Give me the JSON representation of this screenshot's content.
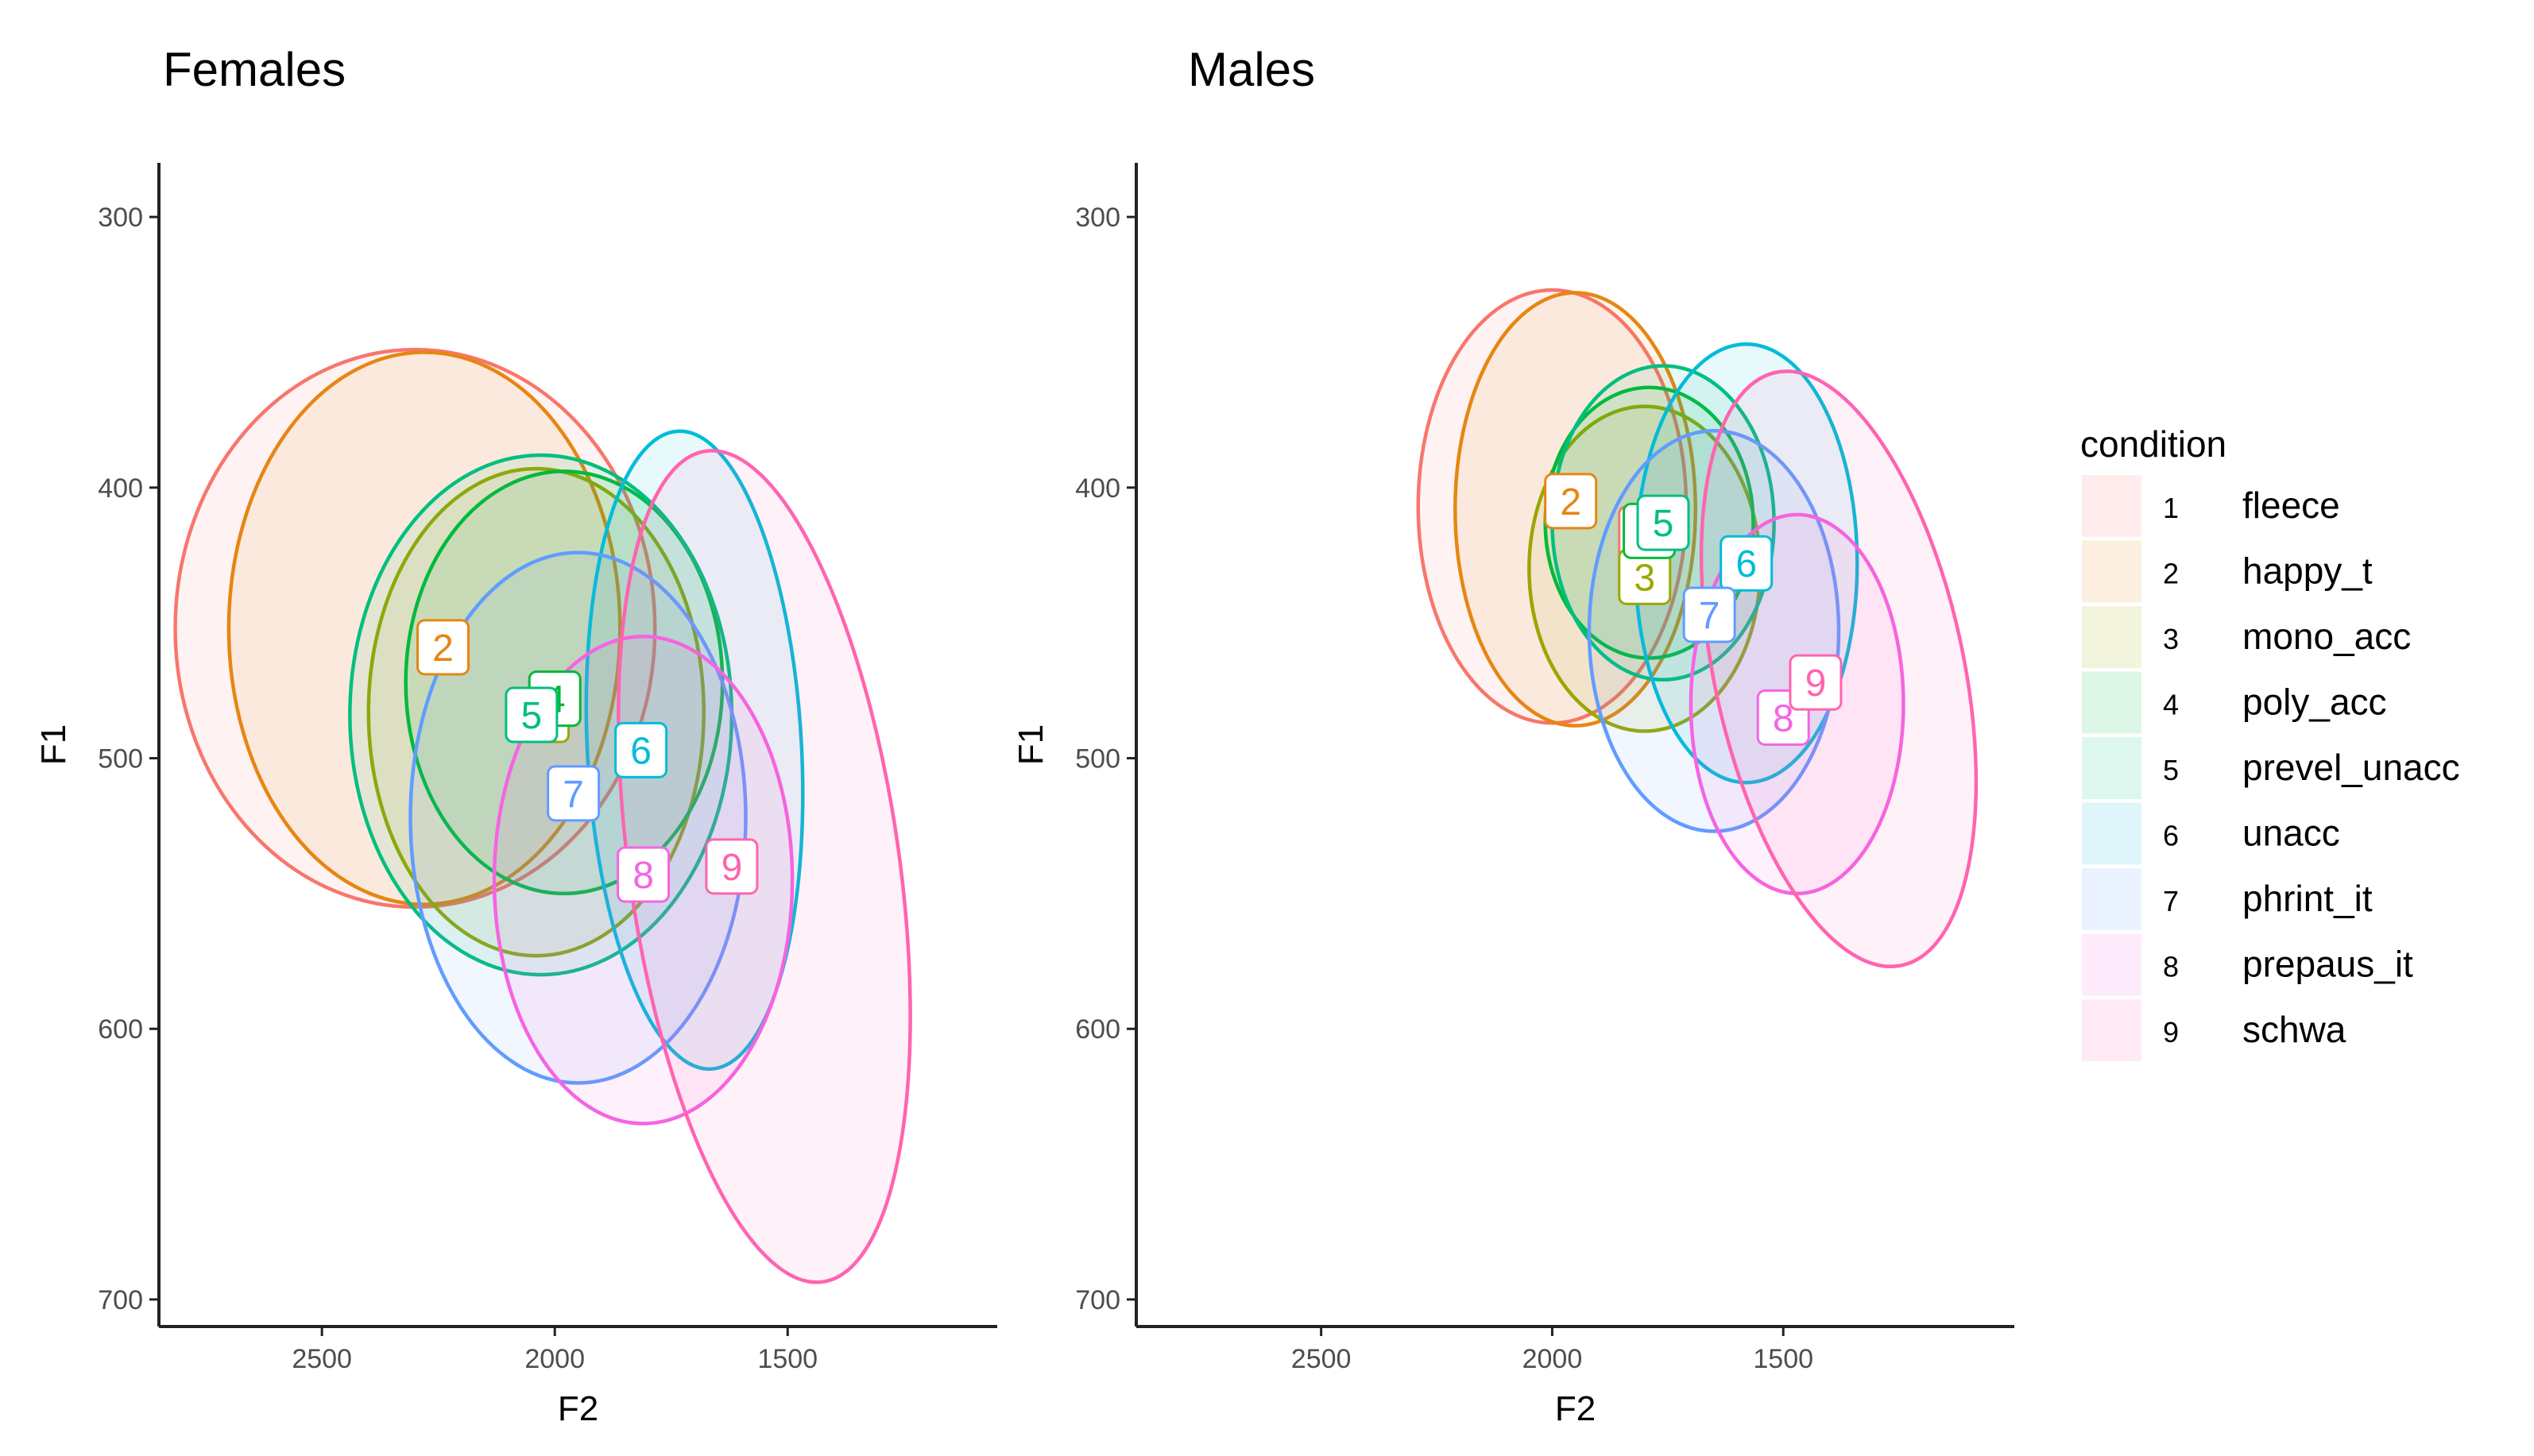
{
  "chart_data": [
    {
      "type": "scatter",
      "panel": "females",
      "title": "Females",
      "xlabel": "F2",
      "ylabel": "F1",
      "x_reversed": true,
      "y_reversed": true,
      "xlim": [
        2850,
        1050
      ],
      "ylim": [
        280,
        710
      ],
      "xticks": [
        2500,
        2000,
        1500
      ],
      "yticks": [
        300,
        400,
        500,
        600,
        700
      ],
      "grid": false,
      "series": [
        {
          "id": 1,
          "name": "fleece",
          "color": "#F8766D",
          "label_f2": 2000,
          "label_f1": 478,
          "ellipse": {
            "f2": 2300,
            "f1": 452,
            "rx": 515,
            "ry": 103,
            "angle": 0
          }
        },
        {
          "id": 2,
          "name": "happy_t",
          "color": "#E68613",
          "label_f2": 2240,
          "label_f1": 459,
          "ellipse": {
            "f2": 2280,
            "f1": 452,
            "rx": 420,
            "ry": 102,
            "angle": 0
          }
        },
        {
          "id": 3,
          "name": "mono_acc",
          "color": "#99A800",
          "label_f2": 2025,
          "label_f1": 484,
          "ellipse": {
            "f2": 2040,
            "f1": 483,
            "rx": 360,
            "ry": 90,
            "angle": 0
          }
        },
        {
          "id": 4,
          "name": "poly_acc",
          "color": "#00BA38",
          "label_f2": 2000,
          "label_f1": 478,
          "ellipse": {
            "f2": 1980,
            "f1": 472,
            "rx": 340,
            "ry": 78,
            "angle": 0
          }
        },
        {
          "id": 5,
          "name": "prevel_unacc",
          "color": "#00BF7D",
          "label_f2": 2050,
          "label_f1": 484,
          "ellipse": {
            "f2": 2030,
            "f1": 484,
            "rx": 410,
            "ry": 96,
            "angle": 0
          }
        },
        {
          "id": 6,
          "name": "unacc",
          "color": "#00BCD8",
          "label_f2": 1815,
          "label_f1": 497,
          "ellipse": {
            "f2": 1700,
            "f1": 497,
            "rx": 230,
            "ry": 118,
            "angle": -3
          }
        },
        {
          "id": 7,
          "name": "phrint_it",
          "color": "#619CFF",
          "label_f2": 1960,
          "label_f1": 513,
          "ellipse": {
            "f2": 1950,
            "f1": 522,
            "rx": 360,
            "ry": 98,
            "angle": 0
          }
        },
        {
          "id": 8,
          "name": "prepaus_it",
          "color": "#F564E3",
          "label_f2": 1810,
          "label_f1": 543,
          "ellipse": {
            "f2": 1810,
            "f1": 545,
            "rx": 320,
            "ry": 90,
            "angle": 0
          }
        },
        {
          "id": 9,
          "name": "schwa",
          "color": "#FF64B0",
          "label_f2": 1620,
          "label_f1": 540,
          "ellipse": {
            "f2": 1550,
            "f1": 540,
            "rx": 290,
            "ry": 155,
            "angle": -8
          }
        }
      ]
    },
    {
      "type": "scatter",
      "panel": "males",
      "title": "Males",
      "xlabel": "F2",
      "ylabel": "F1",
      "x_reversed": true,
      "y_reversed": true,
      "xlim": [
        2900,
        1000
      ],
      "ylim": [
        280,
        710
      ],
      "xticks": [
        2500,
        2000,
        1500
      ],
      "yticks": [
        300,
        400,
        500,
        600,
        700
      ],
      "grid": false,
      "series": [
        {
          "id": 1,
          "name": "fleece",
          "color": "#F8766D",
          "label_f2": 1800,
          "label_f1": 417,
          "ellipse": {
            "f2": 2000,
            "f1": 407,
            "rx": 290,
            "ry": 80,
            "angle": 0
          }
        },
        {
          "id": 2,
          "name": "happy_t",
          "color": "#E68613",
          "label_f2": 1960,
          "label_f1": 405,
          "ellipse": {
            "f2": 1950,
            "f1": 408,
            "rx": 260,
            "ry": 80,
            "angle": 0
          }
        },
        {
          "id": 3,
          "name": "mono_acc",
          "color": "#99A800",
          "label_f2": 1800,
          "label_f1": 433,
          "ellipse": {
            "f2": 1800,
            "f1": 430,
            "rx": 250,
            "ry": 60,
            "angle": 0
          }
        },
        {
          "id": 4,
          "name": "poly_acc",
          "color": "#00BA38",
          "label_f2": 1790,
          "label_f1": 416,
          "ellipse": {
            "f2": 1790,
            "f1": 413,
            "rx": 225,
            "ry": 50,
            "angle": 0
          }
        },
        {
          "id": 5,
          "name": "prevel_unacc",
          "color": "#00BF7D",
          "label_f2": 1760,
          "label_f1": 413,
          "ellipse": {
            "f2": 1760,
            "f1": 413,
            "rx": 240,
            "ry": 58,
            "angle": 0
          }
        },
        {
          "id": 6,
          "name": "unacc",
          "color": "#00BCD8",
          "label_f2": 1580,
          "label_f1": 428,
          "ellipse": {
            "f2": 1580,
            "f1": 428,
            "rx": 240,
            "ry": 81,
            "angle": 0
          }
        },
        {
          "id": 7,
          "name": "phrint_it",
          "color": "#619CFF",
          "label_f2": 1660,
          "label_f1": 447,
          "ellipse": {
            "f2": 1650,
            "f1": 453,
            "rx": 270,
            "ry": 74,
            "angle": 0
          }
        },
        {
          "id": 8,
          "name": "prepaus_it",
          "color": "#F564E3",
          "label_f2": 1500,
          "label_f1": 485,
          "ellipse": {
            "f2": 1470,
            "f1": 480,
            "rx": 230,
            "ry": 70,
            "angle": 0
          }
        },
        {
          "id": 9,
          "name": "schwa",
          "color": "#FF64B0",
          "label_f2": 1430,
          "label_f1": 472,
          "ellipse": {
            "f2": 1380,
            "f1": 467,
            "rx": 270,
            "ry": 112,
            "angle": -12
          }
        }
      ]
    }
  ],
  "legend": {
    "title": "condition",
    "position": "right",
    "items": [
      {
        "key": "1",
        "label": "fleece",
        "color": "#F8766D"
      },
      {
        "key": "2",
        "label": "happy_t",
        "color": "#E68613"
      },
      {
        "key": "3",
        "label": "mono_acc",
        "color": "#99A800"
      },
      {
        "key": "4",
        "label": "poly_acc",
        "color": "#00BA38"
      },
      {
        "key": "5",
        "label": "prevel_unacc",
        "color": "#00BF7D"
      },
      {
        "key": "6",
        "label": "unacc",
        "color": "#00BCD8"
      },
      {
        "key": "7",
        "label": "phrint_it",
        "color": "#619CFF"
      },
      {
        "key": "8",
        "label": "prepaus_it",
        "color": "#F564E3"
      },
      {
        "key": "9",
        "label": "schwa",
        "color": "#FF64B0"
      }
    ]
  }
}
